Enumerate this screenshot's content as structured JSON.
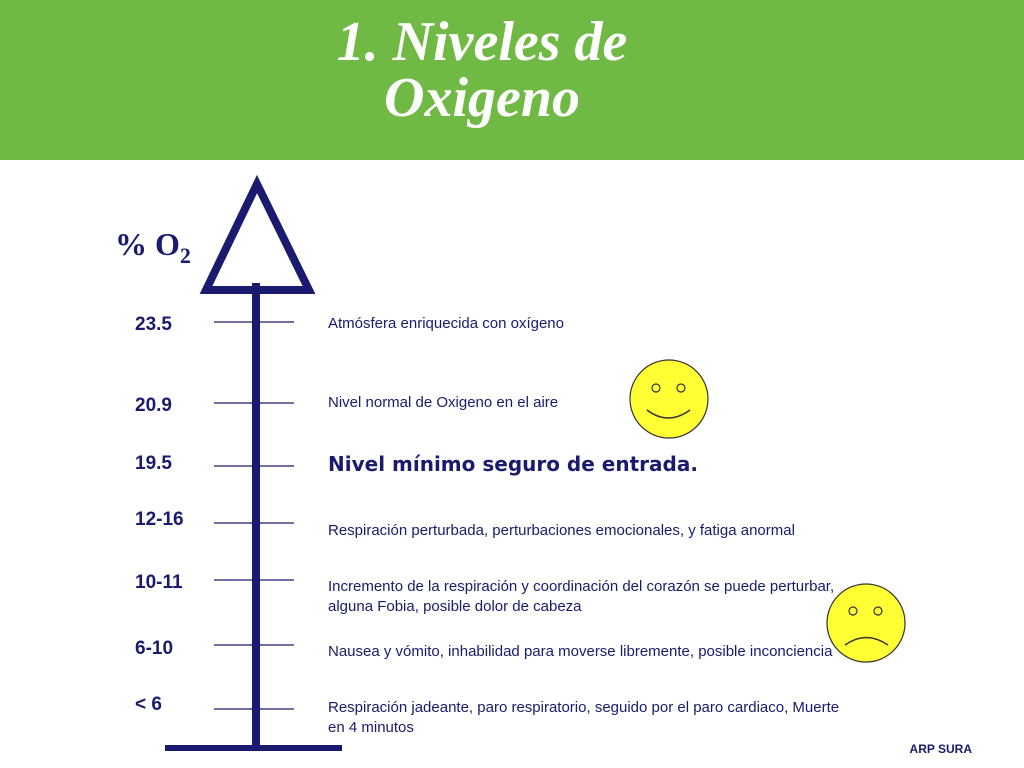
{
  "slide": {
    "title_line1": "1. Niveles de",
    "title_line2": "Oxigeno",
    "o2_label_prefix": "% O",
    "o2_label_sub": "2",
    "footer": "ARP SURA"
  },
  "levels": [
    {
      "value": "23.5",
      "description": "Atmósfera enriquecida con oxígeno",
      "emphasis": false
    },
    {
      "value": "20.9",
      "description": "Nivel normal de Oxigeno en el aire",
      "emphasis": false
    },
    {
      "value": "19.5",
      "description": "Nivel mínimo seguro de entrada.",
      "emphasis": true
    },
    {
      "value": "12-16",
      "description": "Respiración perturbada,  perturbaciones emocionales, y fatiga anormal",
      "emphasis": false
    },
    {
      "value": "10-11",
      "description": "Incremento de la respiración y coordinación del corazón se puede perturbar, alguna Fobia, posible dolor de cabeza",
      "emphasis": false
    },
    {
      "value": "6-10",
      "description": "Nausea  y vómito, inhabilidad para moverse libremente, posible inconciencia",
      "emphasis": false
    },
    {
      "value": "< 6",
      "description": "Respiración jadeante, paro respiratorio, seguido por el paro cardiaco, Muerte en 4 minutos",
      "emphasis": false
    }
  ],
  "icons": {
    "happy": "smiley-face-icon",
    "sad": "sad-face-icon"
  },
  "colors": {
    "header": "#70b944",
    "navy": "#1a1a6e",
    "face": "#ffff33"
  }
}
